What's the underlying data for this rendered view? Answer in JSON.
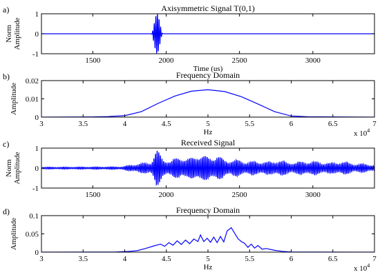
{
  "chart_data": [
    {
      "panel_label": "a)",
      "type": "line",
      "title": "Axisymmetric Signal T(0,1)",
      "xlabel": "Time (us)",
      "ylabel": [
        "Norm",
        "Amplitude"
      ],
      "xlim": [
        1150,
        3420
      ],
      "ylim": [
        -1,
        1
      ],
      "xticks": [
        1500,
        2000,
        2500,
        3000
      ],
      "yticks": [
        -1,
        0,
        1
      ],
      "x_exponent": "",
      "color": "#0000ff",
      "signal": {
        "kind": "tone-burst",
        "center": 1938,
        "halfwidth": 40,
        "period": 11,
        "amplitude": 0.98
      }
    },
    {
      "panel_label": "b)",
      "type": "line",
      "title": "Frequency Domain",
      "xlabel": "Hz",
      "ylabel": [
        "Amplitude"
      ],
      "xlim": [
        30000,
        70000
      ],
      "ylim": [
        0,
        0.02
      ],
      "xticks": [
        30000,
        35000,
        40000,
        45000,
        50000,
        55000,
        60000,
        65000,
        70000
      ],
      "xticklabels": [
        "3",
        "3.5",
        "4",
        "4.5",
        "5",
        "5.5",
        "6",
        "6.5",
        "7"
      ],
      "yticks": [
        0,
        0.01,
        0.02
      ],
      "yticklabels": [
        "0",
        "0.01",
        "0.02"
      ],
      "x_exponent": "x 10^4",
      "color": "#0000ff",
      "x": [
        30000,
        36000,
        38000,
        40000,
        42000,
        44000,
        46000,
        48000,
        50000,
        52000,
        54000,
        56000,
        58000,
        60000,
        62000,
        70000
      ],
      "y": [
        0,
        0.0001,
        0.0003,
        0.0008,
        0.003,
        0.0075,
        0.0115,
        0.0142,
        0.015,
        0.014,
        0.0112,
        0.0072,
        0.003,
        0.0006,
        0.0002,
        0
      ]
    },
    {
      "panel_label": "c)",
      "type": "line",
      "title": "Received Signal",
      "xlabel": "",
      "ylabel": [
        "Norm",
        "Amplitude"
      ],
      "xlim": [
        1150,
        3420
      ],
      "ylim": [
        -1,
        1
      ],
      "xticks": [
        1500,
        2000,
        2500,
        3000
      ],
      "yticks": [
        -1,
        0,
        1
      ],
      "x_exponent": "",
      "color": "#0000ff",
      "signal": {
        "kind": "received",
        "period": 11,
        "envelope": [
          [
            1150,
            0.05
          ],
          [
            1500,
            0.06
          ],
          [
            1700,
            0.07
          ],
          [
            1790,
            0.2
          ],
          [
            1850,
            0.25
          ],
          [
            1895,
            0.3
          ],
          [
            1935,
            0.95
          ],
          [
            1975,
            0.5
          ],
          [
            2030,
            0.35
          ],
          [
            2090,
            0.6
          ],
          [
            2150,
            0.45
          ],
          [
            2220,
            0.7
          ],
          [
            2290,
            0.55
          ],
          [
            2350,
            0.65
          ],
          [
            2400,
            0.4
          ],
          [
            2470,
            0.42
          ],
          [
            2550,
            0.32
          ],
          [
            2620,
            0.34
          ],
          [
            2700,
            0.3
          ],
          [
            2770,
            0.4
          ],
          [
            2830,
            0.28
          ],
          [
            2900,
            0.3
          ],
          [
            2980,
            0.35
          ],
          [
            3050,
            0.3
          ],
          [
            3120,
            0.25
          ],
          [
            3200,
            0.33
          ],
          [
            3280,
            0.22
          ],
          [
            3360,
            0.2
          ],
          [
            3420,
            0.15
          ]
        ]
      }
    },
    {
      "panel_label": "d)",
      "type": "line",
      "title": "Frequency Domain",
      "xlabel": "Hz",
      "ylabel": [
        "Amplitude"
      ],
      "xlim": [
        30000,
        70000
      ],
      "ylim": [
        0,
        0.1
      ],
      "xticks": [
        30000,
        35000,
        40000,
        45000,
        50000,
        55000,
        60000,
        65000,
        70000
      ],
      "xticklabels": [
        "3",
        "3.5",
        "4",
        "4.5",
        "5",
        "5.5",
        "6",
        "6.5",
        "7"
      ],
      "yticks": [
        0,
        0.05,
        0.1
      ],
      "yticklabels": [
        "0",
        "0.05",
        "0.1"
      ],
      "x_exponent": "x 10^4",
      "color": "#0000ff",
      "x": [
        30000,
        39000,
        40500,
        41500,
        42500,
        43500,
        44300,
        44800,
        45300,
        45800,
        46300,
        46800,
        47300,
        47800,
        48300,
        48800,
        49100,
        49500,
        49900,
        50300,
        50700,
        51100,
        51500,
        51900,
        52300,
        52800,
        53200,
        53600,
        54000,
        54400,
        54800,
        55200,
        55600,
        56000,
        56500,
        57000,
        58000,
        59000,
        60000,
        70000
      ],
      "y": [
        0,
        0.0005,
        0.002,
        0.004,
        0.01,
        0.017,
        0.022,
        0.016,
        0.026,
        0.019,
        0.031,
        0.021,
        0.033,
        0.023,
        0.036,
        0.029,
        0.047,
        0.029,
        0.038,
        0.027,
        0.041,
        0.026,
        0.043,
        0.028,
        0.058,
        0.067,
        0.052,
        0.037,
        0.029,
        0.024,
        0.013,
        0.022,
        0.011,
        0.018,
        0.008,
        0.01,
        0.005,
        0.002,
        0.0005,
        0
      ]
    }
  ]
}
